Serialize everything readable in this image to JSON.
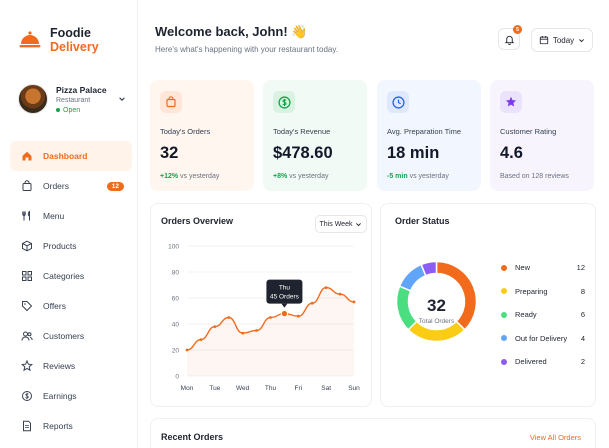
{
  "brand": {
    "line1": "Foodie",
    "line2": "Delivery",
    "accent": "#f26b1d"
  },
  "restaurant": {
    "name": "Pizza Palace",
    "role": "Restaurant",
    "status": "Open"
  },
  "sidebar": {
    "items": [
      {
        "label": "Dashboard",
        "icon": "home-icon",
        "active": true
      },
      {
        "label": "Orders",
        "icon": "bag-icon",
        "badge": "12"
      },
      {
        "label": "Menu",
        "icon": "utensils-icon"
      },
      {
        "label": "Products",
        "icon": "box-icon"
      },
      {
        "label": "Categories",
        "icon": "grid-icon"
      },
      {
        "label": "Offers",
        "icon": "tag-icon"
      },
      {
        "label": "Customers",
        "icon": "users-icon"
      },
      {
        "label": "Reviews",
        "icon": "star-icon"
      },
      {
        "label": "Earnings",
        "icon": "coins-icon"
      },
      {
        "label": "Reports",
        "icon": "document-icon"
      }
    ]
  },
  "header": {
    "welcome": "Welcome back, John! 👋",
    "subtitle": "Here's what's happening with your restaurant today.",
    "notification_count": "5",
    "period": "Today"
  },
  "stats": [
    {
      "label": "Today's Orders",
      "value": "32",
      "delta": "+12%",
      "delta_text": " vs yesterday",
      "bg": "#fff6f0",
      "icon_bg": "#ffe6d6",
      "icon_color": "#f26b1d",
      "delta_color": "#16a34a"
    },
    {
      "label": "Today's Revenue",
      "value": "$478.60",
      "delta": "+8%",
      "delta_text": " vs yesterday",
      "bg": "#f1faf4",
      "icon_bg": "#d9f2e2",
      "icon_color": "#16a34a",
      "delta_color": "#16a34a"
    },
    {
      "label": "Avg. Preparation Time",
      "value": "18 min",
      "delta": "-5 min",
      "delta_text": " vs yesterday",
      "bg": "#f2f6fe",
      "icon_bg": "#dfe9fd",
      "icon_color": "#2563eb",
      "delta_color": "#16a34a"
    },
    {
      "label": "Customer Rating",
      "value": "4.6",
      "delta": "",
      "delta_text": "Based on 128 reviews",
      "bg": "#f7f4fd",
      "icon_bg": "#ebe3fb",
      "icon_color": "#7c3aed",
      "delta_color": "#6b7280"
    }
  ],
  "overview": {
    "title": "Orders Overview",
    "range": "This Week",
    "tooltip_day": "Thu",
    "tooltip_value": "45 Orders"
  },
  "chart_data": {
    "type": "line",
    "categories": [
      "Mon",
      "Tue",
      "Wed",
      "Thu",
      "Fri",
      "Sat",
      "Sun"
    ],
    "y_ticks": [
      "0",
      "20",
      "40",
      "60",
      "80",
      "100"
    ],
    "ylim": [
      0,
      100
    ],
    "x": [
      0,
      0.5,
      1,
      1.5,
      2,
      2.5,
      3,
      3.5,
      4,
      4.5,
      5,
      5.5,
      6
    ],
    "values": [
      20,
      28,
      38,
      45,
      33,
      35,
      45,
      48,
      46,
      56,
      68,
      63,
      57
    ],
    "highlight_index": 7,
    "color": "#f26b1d",
    "grid": true
  },
  "order_status": {
    "title": "Order Status",
    "total": "32",
    "total_label": "Total Orders",
    "items": [
      {
        "name": "New",
        "value": 12,
        "color": "#f26b1d"
      },
      {
        "name": "Preparing",
        "value": 8,
        "color": "#facc15"
      },
      {
        "name": "Ready",
        "value": 6,
        "color": "#4ade80"
      },
      {
        "name": "Out for Delivery",
        "value": 4,
        "color": "#60a5fa"
      },
      {
        "name": "Delivered",
        "value": 2,
        "color": "#8b5cf6"
      }
    ]
  },
  "recent": {
    "title": "Recent Orders",
    "view_all": "View All Orders"
  }
}
